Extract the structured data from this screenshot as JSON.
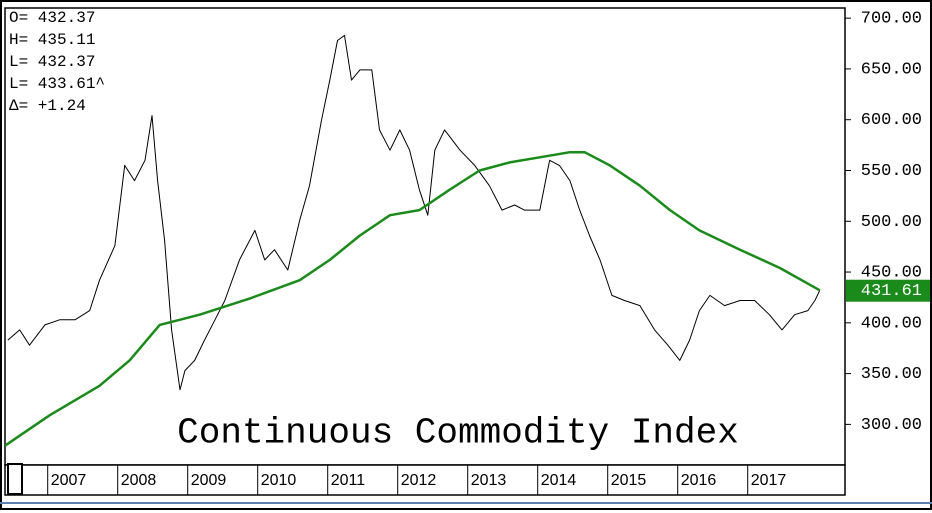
{
  "chart_data": {
    "type": "line",
    "title": "Continuous Commodity Index",
    "annotations": [
      "O= 432.37",
      "H= 435.11",
      "L= 432.37",
      "L= 433.61^",
      "Δ=  +1.24"
    ],
    "price_marker": 431.61,
    "price_marker_color": "#1a8a1a",
    "xlim": [
      2006.39,
      2018.39
    ],
    "xticks": [
      2007,
      2008,
      2009,
      2010,
      2011,
      2012,
      2013,
      2014,
      2015,
      2016,
      2017
    ],
    "ylim": [
      260,
      710
    ],
    "yticks": [
      {
        "value": 300,
        "label": "300.00"
      },
      {
        "value": 350,
        "label": "350.00"
      },
      {
        "value": 400,
        "label": "400.00"
      },
      {
        "value": 450,
        "label": "450.00"
      },
      {
        "value": 500,
        "label": "500.00"
      },
      {
        "value": 550,
        "label": "550.00"
      },
      {
        "value": 600,
        "label": "600.00"
      },
      {
        "value": 650,
        "label": "650.00"
      },
      {
        "value": 700,
        "label": "700.00"
      }
    ],
    "series": [
      {
        "color": "#000000",
        "width": 1,
        "x": [
          2006.43,
          2006.6,
          2006.74,
          2006.96,
          2007.17,
          2007.39,
          2007.6,
          2007.74,
          2007.96,
          2008.1,
          2008.24,
          2008.39,
          2008.49,
          2008.57,
          2008.67,
          2008.77,
          2008.89,
          2008.96,
          2009.1,
          2009.24,
          2009.39,
          2009.53,
          2009.74,
          2009.96,
          2010.1,
          2010.24,
          2010.43,
          2010.6,
          2010.74,
          2010.91,
          2011.03,
          2011.14,
          2011.24,
          2011.34,
          2011.46,
          2011.63,
          2011.74,
          2011.89,
          2012.03,
          2012.17,
          2012.31,
          2012.43,
          2012.53,
          2012.67,
          2012.89,
          2013.1,
          2013.31,
          2013.49,
          2013.67,
          2013.81,
          2014.03,
          2014.17,
          2014.31,
          2014.46,
          2014.6,
          2014.74,
          2014.89,
          2015.06,
          2015.24,
          2015.46,
          2015.67,
          2015.86,
          2016.03,
          2016.17,
          2016.31,
          2016.46,
          2016.67,
          2016.89,
          2017.1,
          2017.31,
          2017.49,
          2017.67,
          2017.86,
          2017.96,
          2018.03
        ],
        "values": [
          383,
          393,
          378,
          398,
          403,
          403,
          412,
          442,
          476,
          555,
          540,
          560,
          604,
          540,
          481,
          393,
          334,
          353,
          363,
          383,
          403,
          422,
          462,
          491,
          462,
          472,
          452,
          501,
          535,
          599,
          639,
          678,
          683,
          639,
          649,
          649,
          590,
          570,
          590,
          570,
          531,
          506,
          570,
          590,
          570,
          555,
          535,
          511,
          516,
          511,
          511,
          560,
          555,
          540,
          511,
          486,
          462,
          427,
          422,
          417,
          393,
          378,
          363,
          383,
          412,
          427,
          417,
          422,
          422,
          408,
          393,
          408,
          412,
          422,
          432
        ]
      },
      {
        "color": "#1a8a1a",
        "width": 2.5,
        "x": [
          2006.39,
          2007.03,
          2007.74,
          2008.17,
          2008.6,
          2009.17,
          2009.89,
          2010.6,
          2011.03,
          2011.46,
          2011.89,
          2012.31,
          2012.74,
          2013.17,
          2013.6,
          2014.03,
          2014.46,
          2014.67,
          2015.03,
          2015.46,
          2015.89,
          2016.31,
          2016.89,
          2017.46,
          2018.03
        ],
        "values": [
          279,
          309,
          338,
          363,
          398,
          408,
          424,
          442,
          462,
          486,
          506,
          511,
          531,
          550,
          558,
          563,
          568,
          568,
          555,
          535,
          511,
          491,
          472,
          454,
          432
        ]
      }
    ]
  }
}
